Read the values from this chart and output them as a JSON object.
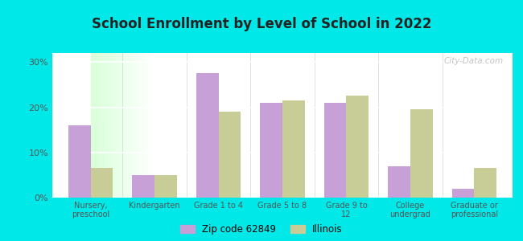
{
  "title": "School Enrollment by Level of School in 2022",
  "categories": [
    "Nursery,\npreschool",
    "Kindergarten",
    "Grade 1 to 4",
    "Grade 5 to 8",
    "Grade 9 to\n12",
    "College\nundergrad",
    "Graduate or\nprofessional"
  ],
  "zip_values": [
    16.0,
    5.0,
    27.5,
    21.0,
    21.0,
    7.0,
    2.0
  ],
  "illinois_values": [
    6.5,
    5.0,
    19.0,
    21.5,
    22.5,
    19.5,
    6.5
  ],
  "zip_color": "#c8a0d8",
  "illinois_color": "#c8cc96",
  "background_color": "#00e8e8",
  "plot_bg_color": "#e8ffe8",
  "ylim": [
    0,
    32
  ],
  "yticks": [
    0,
    10,
    20,
    30
  ],
  "yticklabels": [
    "0%",
    "10%",
    "20%",
    "30%"
  ],
  "legend_zip_label": "Zip code 62849",
  "legend_illinois_label": "Illinois",
  "watermark": "City-Data.com",
  "bar_width": 0.35,
  "title_color": "#222222",
  "tick_color": "#555555"
}
